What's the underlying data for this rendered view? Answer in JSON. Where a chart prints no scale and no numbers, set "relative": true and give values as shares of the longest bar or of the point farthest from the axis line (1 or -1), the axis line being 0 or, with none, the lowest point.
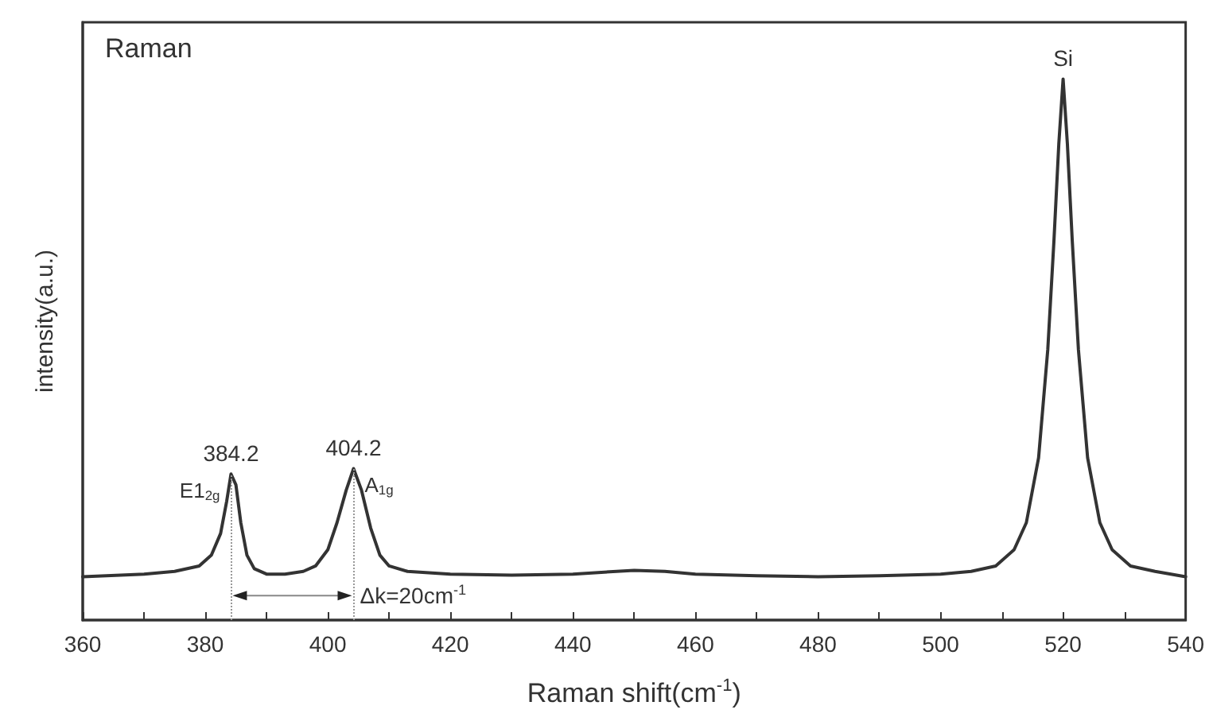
{
  "chart_data": {
    "type": "line",
    "relative": true,
    "xlabel": "Raman shift(cm$^{-1}$)",
    "ylabel": "intensity(a.u.)",
    "xlim": [
      360,
      540
    ],
    "xticks": [
      360,
      {
        "value": 370,
        "label": null
      },
      380,
      {
        "value": 390,
        "label": null
      },
      400,
      {
        "value": 410,
        "label": null
      },
      420,
      {
        "value": 430,
        "label": null
      },
      440,
      {
        "value": 450,
        "label": null
      },
      460,
      {
        "value": 470,
        "label": null
      },
      480,
      {
        "value": 490,
        "label": null
      },
      500,
      {
        "value": 510,
        "label": null
      },
      520,
      {
        "value": 530,
        "label": null
      },
      540
    ],
    "grid": false,
    "marker": "none",
    "line_style": "solid",
    "tick_labels": "x",
    "series": [
      {
        "color": "#333333",
        "x": [
          360,
          370,
          375,
          379,
          381,
          382.5,
          383.5,
          384.2,
          385,
          385.8,
          386.8,
          388,
          390,
          393,
          396,
          398,
          400,
          401.5,
          403,
          404.2,
          405.5,
          407,
          408.5,
          410,
          413,
          420,
          430,
          440,
          450,
          455,
          460,
          470,
          480,
          490,
          500,
          505,
          509,
          512,
          514,
          516,
          517.5,
          518.5,
          519.3,
          520,
          520.7,
          521.5,
          522.5,
          524,
          526,
          528,
          531,
          535,
          540
        ],
        "values": [
          0.08,
          0.085,
          0.09,
          0.1,
          0.12,
          0.16,
          0.22,
          0.27,
          0.25,
          0.18,
          0.12,
          0.095,
          0.085,
          0.085,
          0.09,
          0.1,
          0.13,
          0.18,
          0.24,
          0.28,
          0.24,
          0.17,
          0.12,
          0.1,
          0.09,
          0.085,
          0.083,
          0.085,
          0.092,
          0.09,
          0.085,
          0.082,
          0.08,
          0.082,
          0.085,
          0.09,
          0.1,
          0.13,
          0.18,
          0.3,
          0.5,
          0.7,
          0.88,
          1,
          0.88,
          0.7,
          0.5,
          0.3,
          0.18,
          0.13,
          0.1,
          0.09,
          0.08
        ]
      }
    ],
    "ref_lines": [
      {
        "axis": "x",
        "value": 384.2,
        "color": "#999999",
        "line_style": "dotted"
      },
      {
        "axis": "x",
        "value": 404.2,
        "color": "#999999",
        "line_style": "dotted"
      }
    ],
    "annotations": [
      "Raman",
      {
        "text": "384.2",
        "x": 384.2,
        "y": 0.27
      },
      {
        "text": "404.2",
        "x": 404.2,
        "y": 0.28
      },
      {
        "text": "E1$_{2g}$",
        "x": 384.2,
        "y": 0.24
      },
      {
        "text": "A$_{1g}$",
        "x": 404.2,
        "y": 0.25
      },
      {
        "text": "Si",
        "x": 520,
        "y": 1
      },
      {
        "text": "Δk=20cm$^{-1}$",
        "x": 404.2,
        "y": 0.045
      }
    ]
  }
}
